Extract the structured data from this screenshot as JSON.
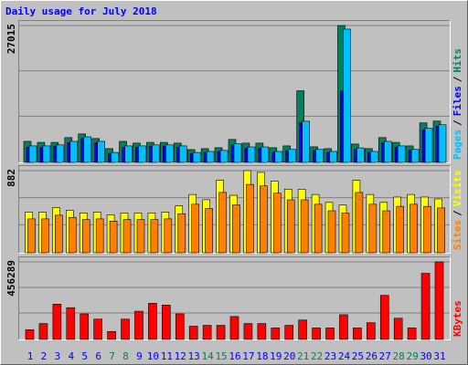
{
  "chart_data": [
    {
      "type": "bar",
      "title": "Daily usage for July 2018",
      "legend_separator": "/",
      "ylim": [
        0,
        27015
      ],
      "yticks": [
        27015
      ],
      "series": [
        {
          "name": "Hits",
          "color": "#00805c",
          "values": [
            4000,
            3800,
            3800,
            4750,
            5480,
            4560,
            2560,
            4000,
            3650,
            3800,
            3800,
            3650,
            2370,
            2560,
            2740,
            4380,
            3650,
            3650,
            2740,
            3100,
            14050,
            2920,
            2560,
            27015,
            3470,
            2560,
            4750,
            3800,
            3100,
            7670,
            8030
          ]
        },
        {
          "name": "Files",
          "color": "#0000ff",
          "values": [
            2850,
            2850,
            3050,
            3750,
            4650,
            3750,
            1600,
            2850,
            2850,
            3050,
            3050,
            2850,
            1600,
            1800,
            2000,
            3250,
            2650,
            2650,
            1800,
            2200,
            7700,
            2200,
            1800,
            14000,
            2450,
            1800,
            3750,
            2850,
            2200,
            6300,
            7000
          ]
        },
        {
          "name": "Pages",
          "color": "#00c0ff",
          "values": [
            3100,
            3100,
            3300,
            4000,
            4900,
            4000,
            1800,
            3100,
            3100,
            3300,
            3300,
            3100,
            1800,
            2000,
            2200,
            3500,
            2900,
            2900,
            2000,
            2400,
            8000,
            2400,
            2000,
            26300,
            2700,
            2000,
            4000,
            3100,
            2400,
            6600,
            7300
          ]
        }
      ]
    },
    {
      "type": "bar",
      "ylim": [
        0,
        882
      ],
      "yticks": [
        882
      ],
      "series": [
        {
          "name": "Visits",
          "color": "#ffff00",
          "values": [
            431,
            431,
            480,
            451,
            422,
            431,
            403,
            422,
            422,
            422,
            431,
            499,
            623,
            566,
            777,
            614,
            882,
            863,
            767,
            681,
            681,
            623,
            537,
            508,
            777,
            623,
            537,
            595,
            623,
            595,
            575
          ]
        },
        {
          "name": "Sites",
          "color": "#ff8000",
          "values": [
            358,
            358,
            398,
            374,
            350,
            358,
            334,
            350,
            350,
            350,
            358,
            414,
            517,
            470,
            645,
            510,
            732,
            716,
            637,
            565,
            565,
            517,
            446,
            422,
            645,
            517,
            446,
            494,
            517,
            494,
            477
          ]
        }
      ]
    },
    {
      "type": "bar",
      "ylim": [
        0,
        456289
      ],
      "yticks": [
        456289
      ],
      "categories": [
        "1",
        "2",
        "3",
        "4",
        "5",
        "6",
        "7",
        "8",
        "9",
        "10",
        "11",
        "12",
        "13",
        "14",
        "15",
        "16",
        "17",
        "18",
        "19",
        "20",
        "21",
        "22",
        "23",
        "24",
        "25",
        "26",
        "27",
        "28",
        "29",
        "30",
        "31"
      ],
      "category_colors": [
        "#0000ff",
        "#0000ff",
        "#0000ff",
        "#0000ff",
        "#0000ff",
        "#0000ff",
        "#00805c",
        "#00805c",
        "#0000ff",
        "#0000ff",
        "#0000ff",
        "#0000ff",
        "#0000ff",
        "#00805c",
        "#00805c",
        "#0000ff",
        "#0000ff",
        "#0000ff",
        "#0000ff",
        "#0000ff",
        "#00805c",
        "#00805c",
        "#0000ff",
        "#0000ff",
        "#0000ff",
        "#0000ff",
        "#0000ff",
        "#00805c",
        "#00805c",
        "#0000ff",
        "#0000ff"
      ],
      "series": [
        {
          "name": "KBytes",
          "color": "#ff0000",
          "values": [
            52450,
            89200,
            204600,
            183600,
            146900,
            115400,
            42000,
            115400,
            162600,
            209800,
            199300,
            146900,
            73400,
            78700,
            78700,
            131100,
            89200,
            89200,
            62900,
            78700,
            110100,
            62900,
            62900,
            141600,
            62900,
            94400,
            257000,
            120600,
            62900,
            388100,
            456289
          ]
        }
      ]
    }
  ]
}
